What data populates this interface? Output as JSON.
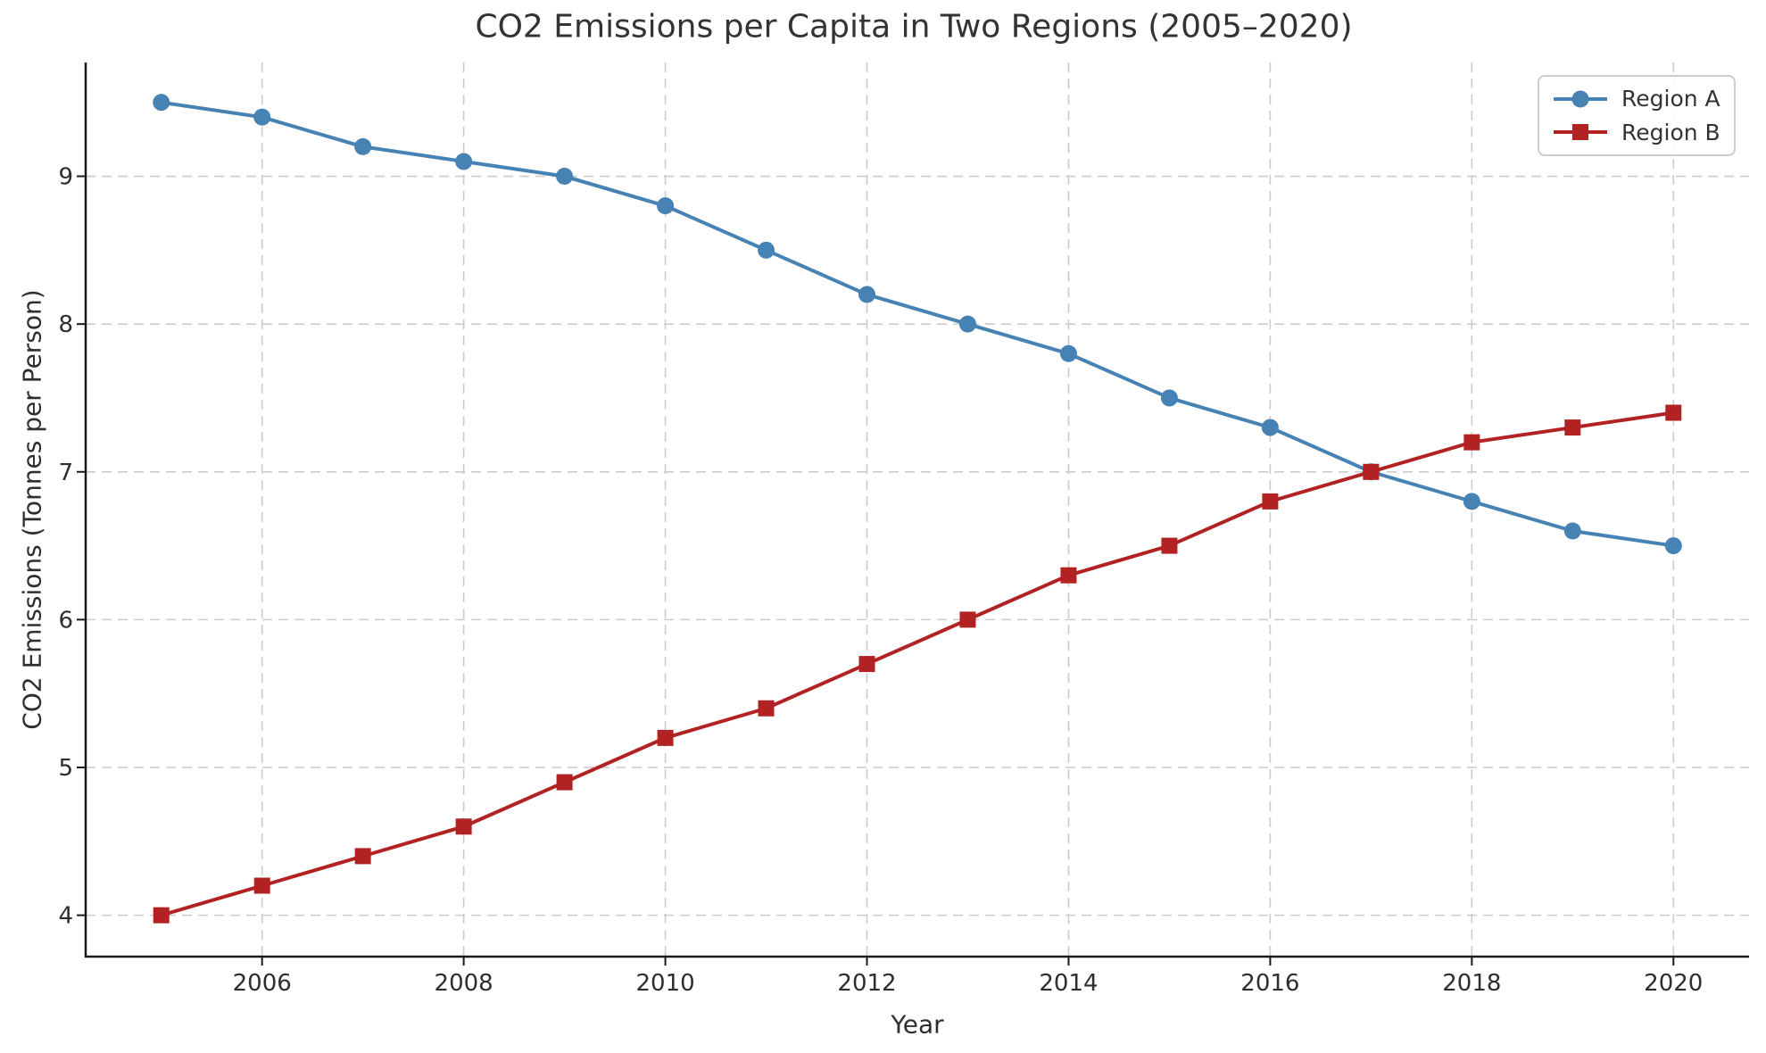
{
  "chart_data": {
    "type": "line",
    "title": "CO2 Emissions per Capita in Two Regions (2005–2020)",
    "xlabel": "Year",
    "ylabel": "CO2 Emissions (Tonnes per Person)",
    "x": [
      2005,
      2006,
      2007,
      2008,
      2009,
      2010,
      2011,
      2012,
      2013,
      2014,
      2015,
      2016,
      2017,
      2018,
      2019,
      2020
    ],
    "series": [
      {
        "name": "Region A",
        "color": "#4682B4",
        "marker": "circle",
        "values": [
          9.5,
          9.4,
          9.2,
          9.1,
          9.0,
          8.8,
          8.5,
          8.2,
          8.0,
          7.8,
          7.5,
          7.3,
          7.0,
          6.8,
          6.6,
          6.5
        ]
      },
      {
        "name": "Region B",
        "color": "#B22222",
        "marker": "square",
        "values": [
          4.0,
          4.2,
          4.4,
          4.6,
          4.9,
          5.2,
          5.4,
          5.7,
          6.0,
          6.3,
          6.5,
          6.8,
          7.0,
          7.2,
          7.3,
          7.4
        ]
      }
    ],
    "xticks": [
      2006,
      2008,
      2010,
      2012,
      2014,
      2016,
      2018,
      2020
    ],
    "yticks": [
      4,
      5,
      6,
      7,
      8,
      9
    ],
    "xlim": [
      2004.25,
      2020.75
    ],
    "ylim": [
      3.72,
      9.77
    ],
    "grid": true,
    "grid_style": "dashed",
    "legend_position": "upper right",
    "grid_color": "#cccccc",
    "spine_color": "#1a1a1a",
    "text_color": "#2e2e2e"
  }
}
